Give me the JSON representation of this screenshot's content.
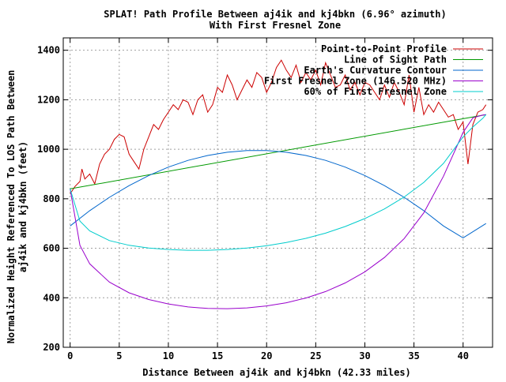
{
  "chart_data": {
    "type": "line",
    "title": "SPLAT! Path Profile Between aj4ik and kj4bkn (6.96° azimuth)",
    "subtitle": "With First Fresnel Zone",
    "xlabel": "Distance Between aj4ik and kj4bkn (42.33 miles)",
    "ylabel_lines": [
      "Normalized Height Referenced To LOS Path Between",
      "aj4ik and kj4bkn (feet)"
    ],
    "xlim": [
      -0.7,
      43.0
    ],
    "ylim": [
      200,
      1450
    ],
    "x_ticks": [
      0,
      5,
      10,
      15,
      20,
      25,
      30,
      35,
      40
    ],
    "y_ticks": [
      200,
      400,
      600,
      800,
      1000,
      1200,
      1400
    ],
    "grid": true,
    "legend_position": "top-right",
    "series": [
      {
        "name": "Point-to-Point Profile",
        "color": "#cc0000",
        "x": [
          0,
          0.5,
          1,
          1.2,
          1.5,
          2,
          2.5,
          3,
          3.5,
          4,
          4.5,
          5,
          5.5,
          6,
          6.5,
          7,
          7.5,
          8,
          8.5,
          9,
          9.5,
          10,
          10.5,
          11,
          11.5,
          12,
          12.5,
          13,
          13.5,
          14,
          14.5,
          15,
          15.5,
          16,
          16.5,
          17,
          17.5,
          18,
          18.5,
          19,
          19.5,
          20,
          20.5,
          21,
          21.5,
          22,
          22.5,
          23,
          23.5,
          24,
          24.5,
          25,
          25.5,
          26,
          26.5,
          27,
          27.5,
          28,
          28.5,
          29,
          29.5,
          30,
          30.5,
          31,
          31.5,
          32,
          32.5,
          33,
          33.5,
          34,
          34.5,
          35,
          35.5,
          36,
          36.5,
          37,
          37.5,
          38,
          38.5,
          39,
          39.5,
          40,
          40.5,
          41,
          41.5,
          42,
          42.33
        ],
        "y": [
          820,
          850,
          870,
          920,
          880,
          900,
          860,
          940,
          980,
          1000,
          1040,
          1060,
          1050,
          980,
          950,
          920,
          1000,
          1050,
          1100,
          1080,
          1120,
          1150,
          1180,
          1160,
          1200,
          1190,
          1140,
          1200,
          1220,
          1150,
          1180,
          1250,
          1230,
          1300,
          1260,
          1200,
          1240,
          1280,
          1250,
          1310,
          1290,
          1230,
          1270,
          1330,
          1360,
          1320,
          1290,
          1340,
          1270,
          1310,
          1280,
          1320,
          1260,
          1350,
          1300,
          1250,
          1260,
          1300,
          1240,
          1270,
          1220,
          1270,
          1260,
          1230,
          1200,
          1260,
          1210,
          1270,
          1230,
          1180,
          1300,
          1150,
          1250,
          1140,
          1180,
          1150,
          1190,
          1160,
          1130,
          1140,
          1080,
          1110,
          940,
          1100,
          1150,
          1160,
          1180
        ]
      },
      {
        "name": "Line of Sight Path",
        "color": "#009900",
        "x": [
          0,
          42.33
        ],
        "y": [
          840,
          1140
        ]
      },
      {
        "name": "Earth's Curvature Contour",
        "color": "#0066cc",
        "x": [
          0,
          2,
          4,
          6,
          8,
          10,
          12,
          14,
          16,
          18,
          20,
          22,
          24,
          26,
          28,
          30,
          32,
          34,
          36,
          38,
          40,
          42.33
        ],
        "y": [
          690,
          752,
          806,
          853,
          894,
          928,
          955,
          975,
          988,
          995,
          995,
          988,
          975,
          955,
          928,
          894,
          853,
          806,
          752,
          690,
          642,
          700
        ]
      },
      {
        "name": "First Fresnel Zone (146.520 MHz)",
        "color": "#9900cc",
        "x": [
          0,
          1,
          2,
          4,
          6,
          8,
          10,
          12,
          14,
          16,
          18,
          20,
          22,
          24,
          26,
          28,
          30,
          32,
          34,
          36,
          38,
          40,
          41,
          42,
          42.33
        ],
        "y": [
          840,
          612,
          537,
          463,
          420,
          393,
          375,
          363,
          357,
          356,
          359,
          367,
          380,
          399,
          425,
          460,
          505,
          563,
          639,
          743,
          891,
          1068,
          1127,
          1138,
          1140
        ]
      },
      {
        "name": "60% of First Fresnel Zone",
        "color": "#00cccc",
        "x": [
          0,
          1,
          2,
          4,
          6,
          8,
          10,
          12,
          14,
          16,
          18,
          20,
          22,
          24,
          26,
          28,
          30,
          32,
          34,
          36,
          38,
          40,
          41,
          42,
          42.33
        ],
        "y": [
          840,
          710,
          670,
          631,
          612,
          601,
          595,
          592,
          592,
          595,
          601,
          610,
          623,
          640,
          661,
          688,
          720,
          759,
          807,
          866,
          943,
          1050,
          1090,
          1125,
          1140
        ]
      }
    ]
  }
}
